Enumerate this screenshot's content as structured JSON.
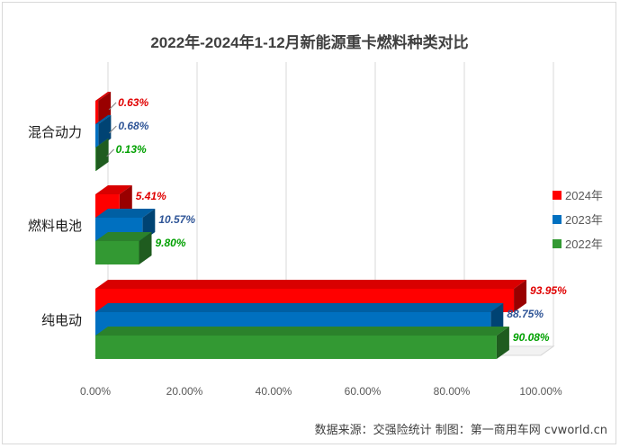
{
  "chart_data": {
    "type": "bar",
    "orientation": "horizontal",
    "title": "2022年-2024年1-12月新能源重卡燃料种类对比",
    "categories": [
      "混合动力",
      "燃料电池",
      "纯电动"
    ],
    "series": [
      {
        "name": "2024年",
        "color": "#ff0000",
        "label_color": "#e00000",
        "values": [
          0.63,
          5.41,
          93.95
        ],
        "labels": [
          "0.63%",
          "5.41%",
          "93.95%"
        ]
      },
      {
        "name": "2023年",
        "color": "#0070c0",
        "label_color": "#2f5597",
        "values": [
          0.68,
          10.57,
          88.75
        ],
        "labels": [
          "0.68%",
          "10.57%",
          "88.75%"
        ]
      },
      {
        "name": "2022年",
        "color": "#339933",
        "label_color": "#00a000",
        "values": [
          0.13,
          9.8,
          90.08
        ],
        "labels": [
          "0.13%",
          "9.80%",
          "90.08%"
        ]
      }
    ],
    "x_ticks": [
      "0.00%",
      "20.00%",
      "40.00%",
      "60.00%",
      "80.00%",
      "100.00%"
    ],
    "xlim": [
      0,
      100
    ],
    "grid": true,
    "legend_position": "right"
  },
  "source_note": "数据来源：交强险统计 制图：第一商用车网 cvworld.cn"
}
